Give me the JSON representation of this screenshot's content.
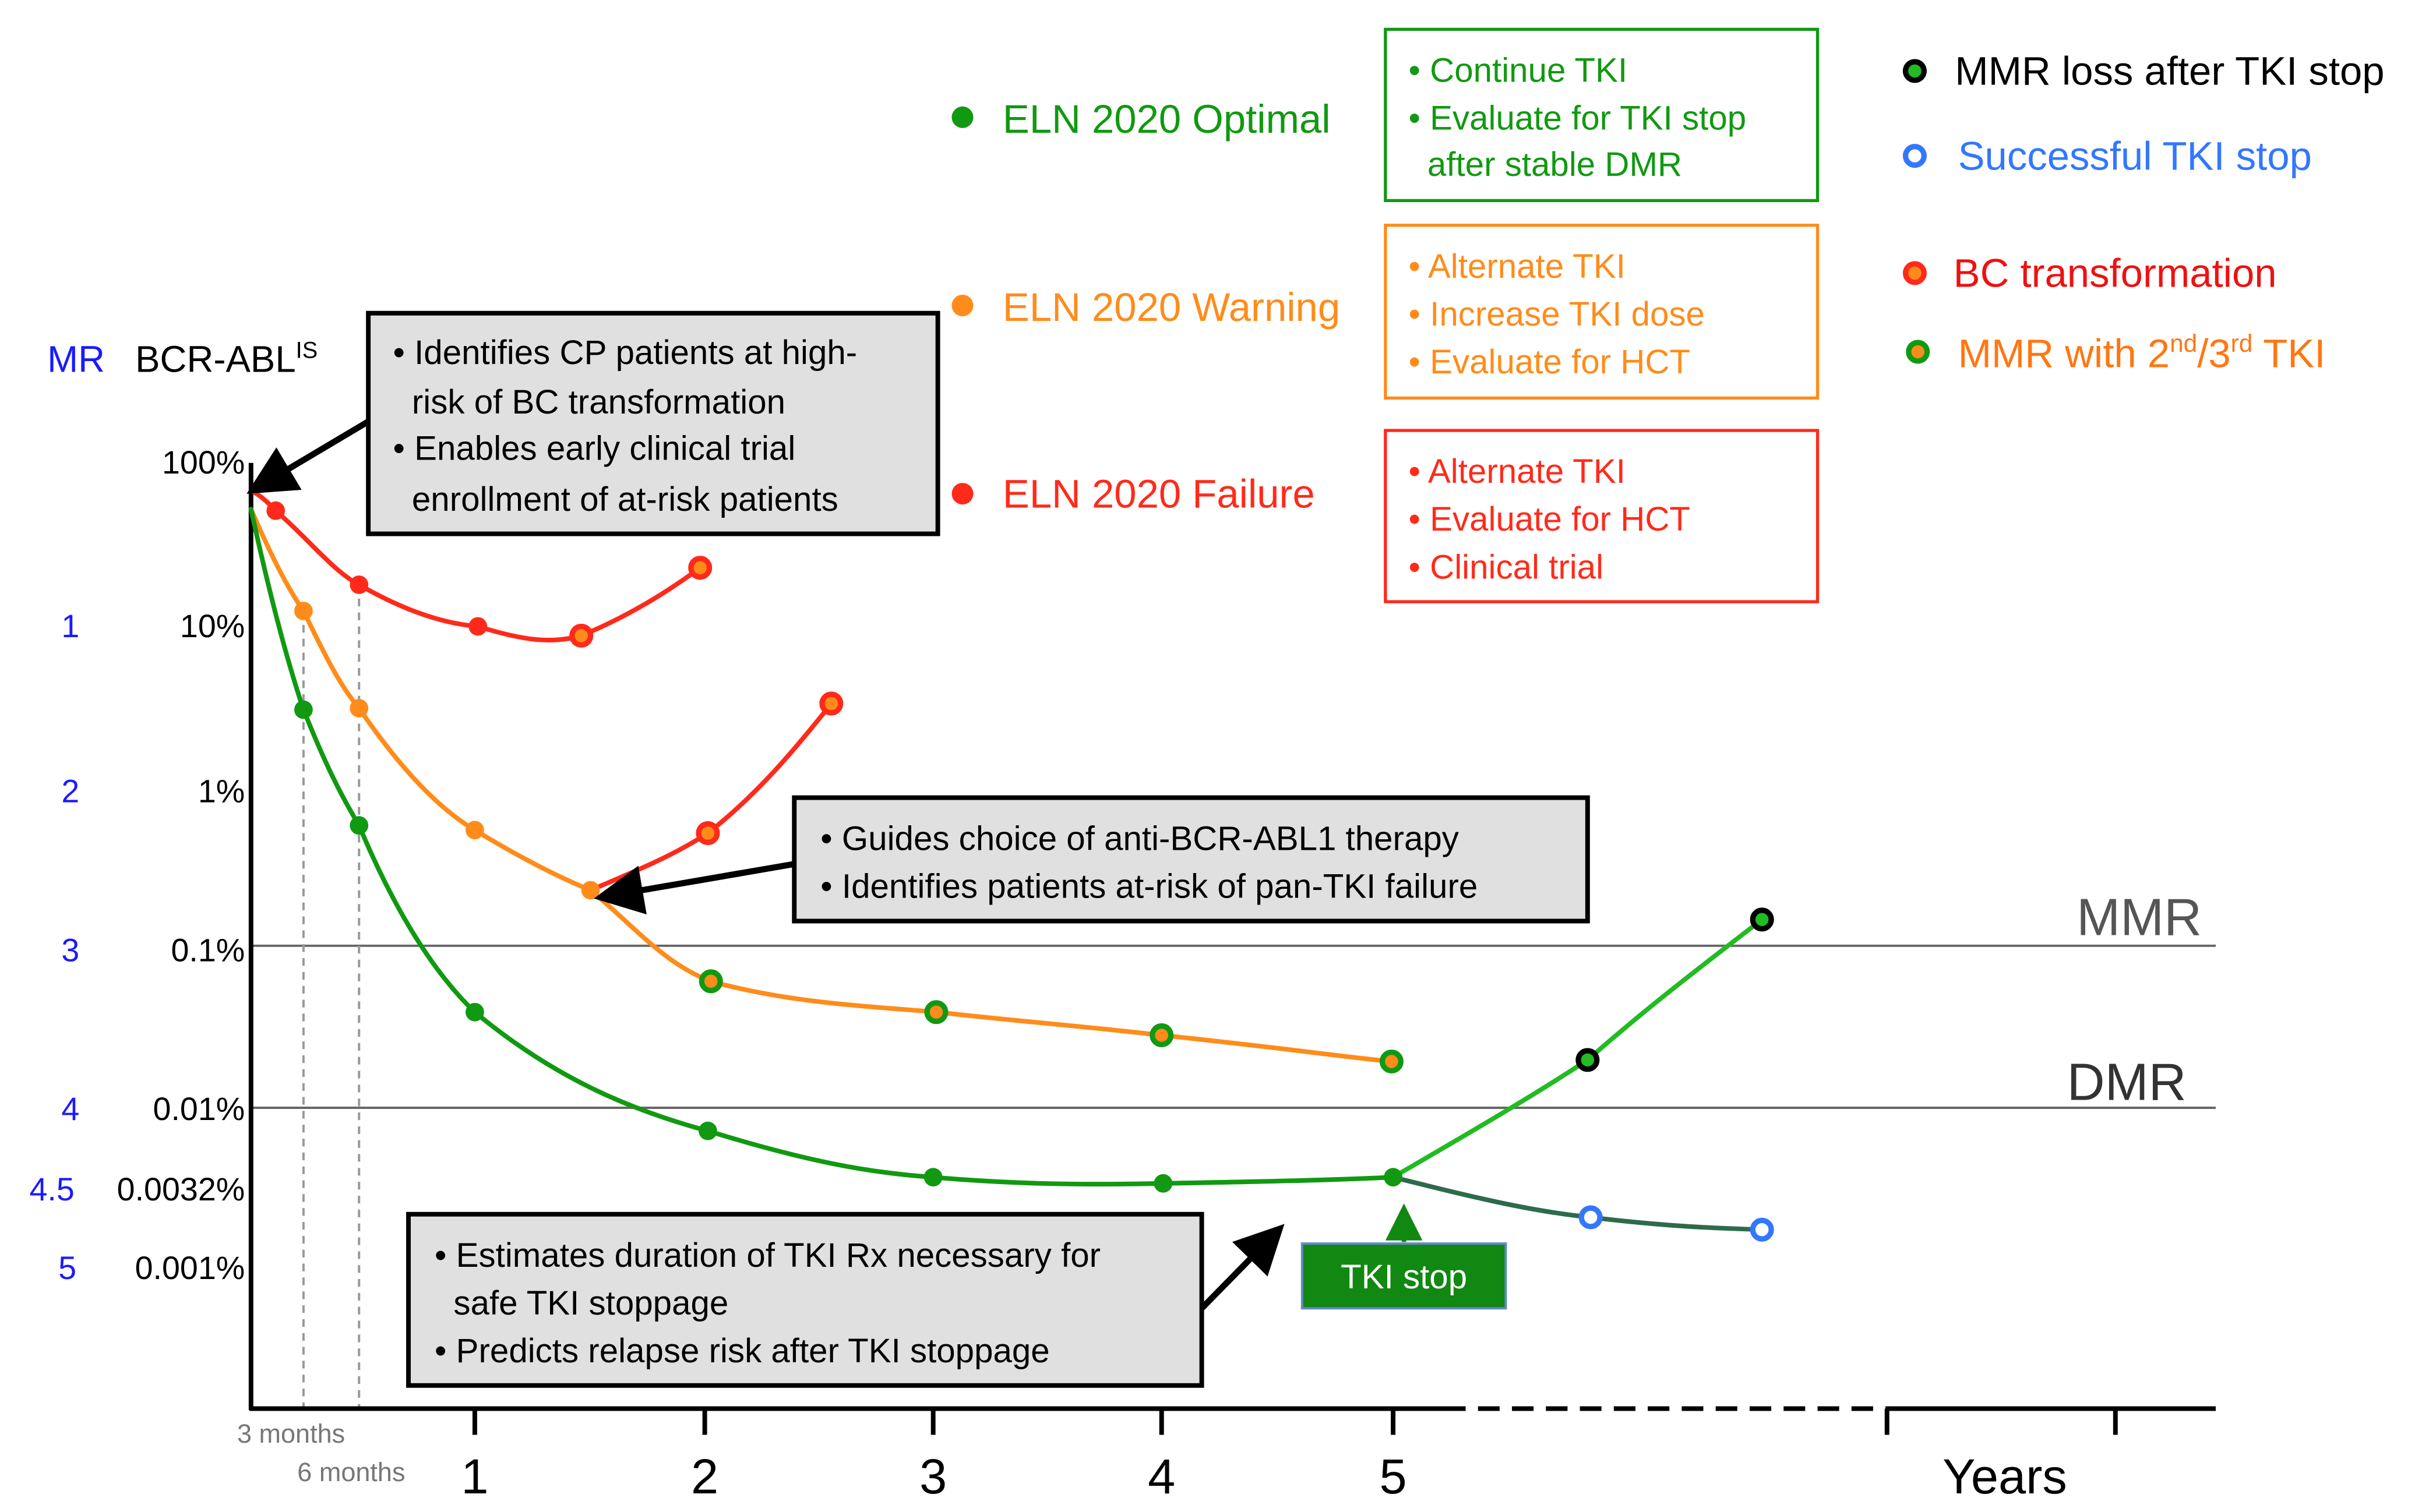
{
  "axis": {
    "mr_label": "MR",
    "y_label": "BCR-ABL",
    "y_label_sup": "IS",
    "y_ticks": [
      "100%",
      "10%",
      "1%",
      "0.1%",
      "0.01%",
      "0.0032%",
      "0.001%"
    ],
    "mr_ticks": [
      "1",
      "2",
      "3",
      "4",
      "4.5",
      "5"
    ],
    "x_ticks": [
      "1",
      "2",
      "3",
      "4",
      "5"
    ],
    "x_label": "Years",
    "x_sub_labels": [
      "3 months",
      "6 months"
    ],
    "mmr_line": "MMR",
    "dmr_line": "DMR"
  },
  "legend_left": [
    {
      "label": "ELN 2020 Optimal",
      "color": "#119911"
    },
    {
      "label": "ELN 2020 Warning",
      "color": "#ff8c1a"
    },
    {
      "label": "ELN 2020 Failure",
      "color": "#ff2a1a"
    }
  ],
  "action_boxes": [
    {
      "color": "#119911",
      "lines": [
        "• Continue TKI",
        "• Evaluate for TKI stop",
        "  after stable DMR"
      ]
    },
    {
      "color": "#ff8c1a",
      "lines": [
        "• Alternate TKI",
        "• Increase TKI dose",
        "• Evaluate for HCT"
      ]
    },
    {
      "color": "#ff2a1a",
      "lines": [
        "• Alternate TKI",
        "• Evaluate for HCT",
        "• Clinical trial"
      ]
    }
  ],
  "legend_right": [
    {
      "label": "MMR loss after TKI stop",
      "color": "#000000"
    },
    {
      "label": "Successful TKI stop",
      "color": "#3377ff"
    },
    {
      "label": "BC transformation",
      "color": "#ee1111"
    },
    {
      "label": "MMR with 2",
      "sup1": "nd",
      "mid": "/3",
      "sup2": "rd",
      "end": " TKI",
      "color": "#ff7711"
    }
  ],
  "callouts": [
    {
      "lines": [
        "• Identifies CP patients at high-",
        "  risk of BC transformation",
        "• Enables early clinical trial",
        "  enrollment of at-risk patients"
      ]
    },
    {
      "lines": [
        "• Guides choice of anti-BCR-ABL1 therapy",
        "• Identifies patients at-risk of pan-TKI failure"
      ]
    },
    {
      "lines": [
        "• Estimates duration of TKI Rx necessary for",
        "  safe TKI stoppage",
        "• Predicts relapse risk after TKI stoppage"
      ]
    }
  ],
  "tki_stop_label": "TKI stop",
  "colors": {
    "green": "#119911",
    "orange": "#ff8c1a",
    "red": "#ff2a1a",
    "light_green": "#22bb22",
    "dark_green": "#2d6b4a",
    "blue": "#3377ff",
    "box_gray": "#e0e0e0"
  }
}
